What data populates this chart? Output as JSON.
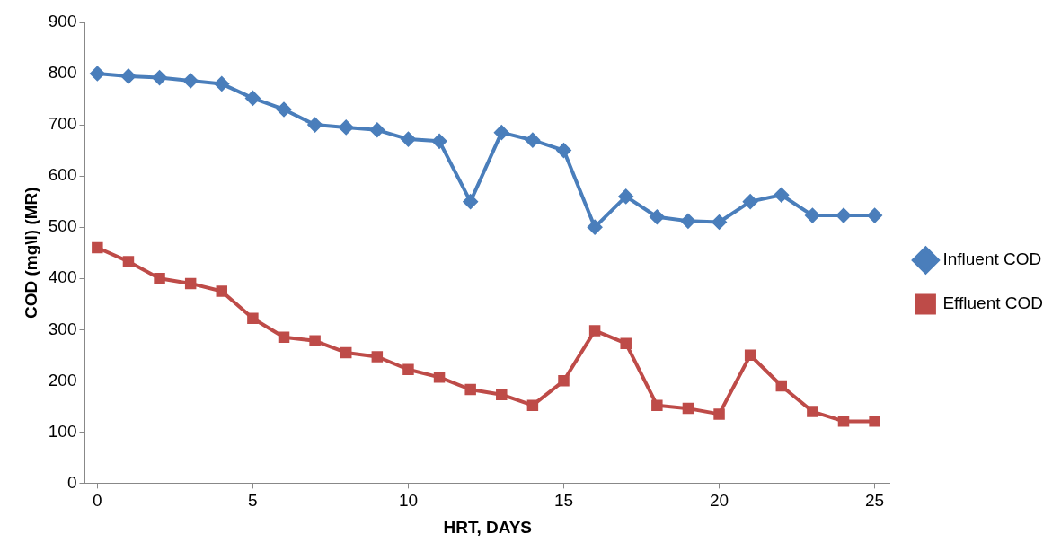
{
  "chart_data": {
    "type": "line",
    "xlabel": "HRT, DAYS",
    "ylabel": "COD (mg\\l) (MR)",
    "x": [
      0,
      1,
      2,
      3,
      4,
      5,
      6,
      7,
      8,
      9,
      10,
      11,
      12,
      13,
      14,
      15,
      16,
      17,
      18,
      19,
      20,
      21,
      22,
      23,
      24,
      25
    ],
    "series": [
      {
        "name": "Influent COD",
        "color": "#4a7ebb",
        "marker": "diamond",
        "values": [
          800,
          795,
          792,
          786,
          780,
          752,
          730,
          700,
          695,
          690,
          672,
          668,
          550,
          685,
          670,
          650,
          500,
          560,
          520,
          512,
          510,
          550,
          563,
          523,
          523,
          523
        ]
      },
      {
        "name": "Effluent COD",
        "color": "#be4b48",
        "marker": "square",
        "values": [
          460,
          433,
          400,
          390,
          375,
          322,
          285,
          278,
          255,
          247,
          222,
          207,
          183,
          173,
          152,
          200,
          298,
          273,
          152,
          146,
          135,
          250,
          190,
          140,
          121,
          121
        ]
      }
    ],
    "xlim": [
      -0.4,
      25.5
    ],
    "xticks": [
      0,
      5,
      10,
      15,
      20,
      25
    ],
    "ylim": [
      0,
      900
    ],
    "yticks": [
      0,
      100,
      200,
      300,
      400,
      500,
      600,
      700,
      800,
      900
    ],
    "grid": false,
    "legend": "right",
    "line_style": "solid"
  }
}
